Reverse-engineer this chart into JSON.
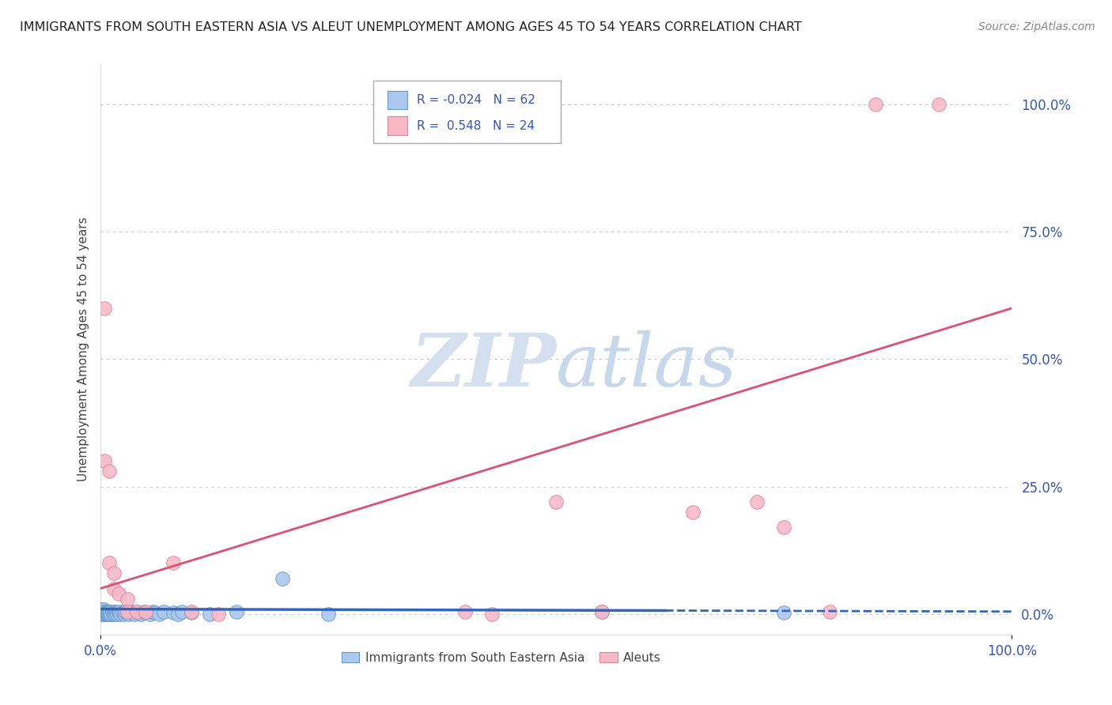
{
  "title": "IMMIGRANTS FROM SOUTH EASTERN ASIA VS ALEUT UNEMPLOYMENT AMONG AGES 45 TO 54 YEARS CORRELATION CHART",
  "source": "Source: ZipAtlas.com",
  "ylabel": "Unemployment Among Ages 45 to 54 years",
  "xlim": [
    0,
    1.0
  ],
  "ylim": [
    -0.04,
    1.08
  ],
  "x_tick_labels": [
    "0.0%",
    "100.0%"
  ],
  "y_tick_labels": [
    "0.0%",
    "25.0%",
    "50.0%",
    "75.0%",
    "100.0%"
  ],
  "y_tick_values": [
    0.0,
    0.25,
    0.5,
    0.75,
    1.0
  ],
  "grid_color": "#cccccc",
  "background_color": "#ffffff",
  "blue_series": {
    "label": "Immigrants from South Eastern Asia",
    "R": -0.024,
    "N": 62,
    "color": "#aac8f0",
    "edge_color": "#6699cc",
    "line_color": "#3366bb",
    "x": [
      0.0,
      0.0,
      0.0,
      0.002,
      0.002,
      0.003,
      0.003,
      0.004,
      0.004,
      0.004,
      0.005,
      0.005,
      0.006,
      0.006,
      0.007,
      0.007,
      0.008,
      0.008,
      0.009,
      0.009,
      0.01,
      0.01,
      0.011,
      0.012,
      0.013,
      0.014,
      0.015,
      0.016,
      0.017,
      0.018,
      0.019,
      0.02,
      0.021,
      0.022,
      0.025,
      0.026,
      0.027,
      0.03,
      0.032,
      0.034,
      0.035,
      0.038,
      0.04,
      0.042,
      0.045,
      0.048,
      0.05,
      0.055,
      0.058,
      0.06,
      0.065,
      0.07,
      0.08,
      0.085,
      0.09,
      0.1,
      0.12,
      0.15,
      0.2,
      0.25,
      0.55,
      0.75
    ],
    "y": [
      0.0,
      0.005,
      0.01,
      0.0,
      0.005,
      0.0,
      0.005,
      0.0,
      0.005,
      0.01,
      0.0,
      0.005,
      0.0,
      0.005,
      0.0,
      0.003,
      0.0,
      0.005,
      0.0,
      0.005,
      0.0,
      0.003,
      0.005,
      0.0,
      0.005,
      0.0,
      0.003,
      0.0,
      0.005,
      0.003,
      0.0,
      0.003,
      0.005,
      0.0,
      0.003,
      0.0,
      0.005,
      0.003,
      0.0,
      0.005,
      0.003,
      0.0,
      0.005,
      0.003,
      0.0,
      0.005,
      0.003,
      0.0,
      0.005,
      0.003,
      0.0,
      0.005,
      0.003,
      0.0,
      0.005,
      0.003,
      0.0,
      0.005,
      0.07,
      0.0,
      0.005,
      0.003
    ]
  },
  "pink_series": {
    "label": "Aleuts",
    "R": 0.548,
    "N": 24,
    "color": "#f8b8c8",
    "edge_color": "#dd8899",
    "line_color": "#e05070",
    "x": [
      0.005,
      0.005,
      0.01,
      0.01,
      0.015,
      0.015,
      0.02,
      0.03,
      0.03,
      0.04,
      0.05,
      0.08,
      0.1,
      0.13,
      0.4,
      0.43,
      0.5,
      0.55,
      0.65,
      0.72,
      0.75,
      0.8,
      0.85,
      0.92
    ],
    "y": [
      0.6,
      0.3,
      0.28,
      0.1,
      0.08,
      0.05,
      0.04,
      0.03,
      0.005,
      0.005,
      0.005,
      0.1,
      0.005,
      0.0,
      0.005,
      0.0,
      0.22,
      0.005,
      0.2,
      0.22,
      0.17,
      0.005,
      1.0,
      1.0
    ]
  },
  "watermark_zip": "ZIP",
  "watermark_atlas": "atlas",
  "watermark_color": "#d0ddf0",
  "legend_box_color": "#ffffff",
  "legend_border_color": "#bbbbbb",
  "text_color": "#3355bb",
  "label_color": "#444444"
}
